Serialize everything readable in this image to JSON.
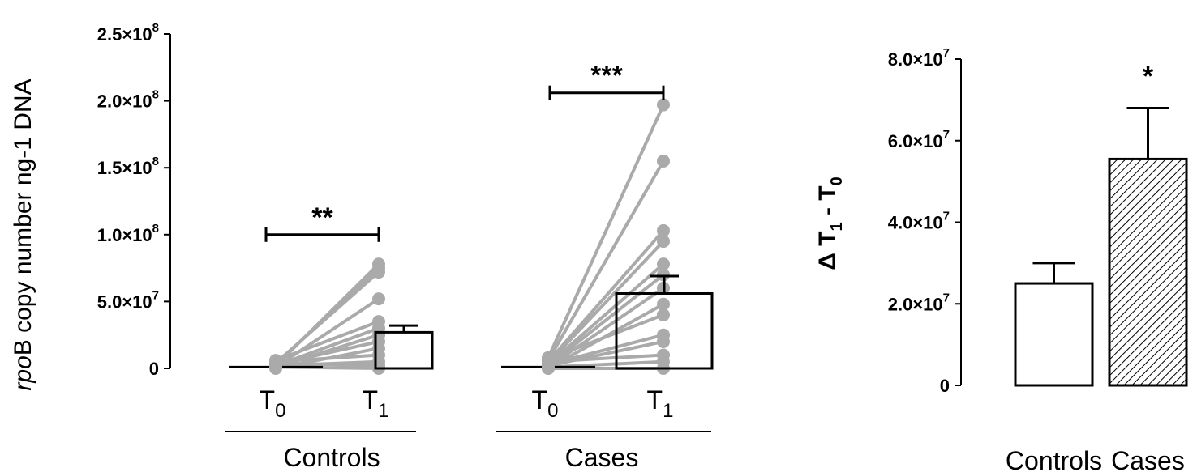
{
  "chart_data": [
    {
      "type": "bar",
      "ylabel": {
        "italic": "rpo",
        "rest": "B copy number ng-1 DNA"
      },
      "ylim": [
        0,
        250000000
      ],
      "yticks": [
        {
          "value": 0,
          "base": "0",
          "exp": ""
        },
        {
          "value": 50000000,
          "base": "5.0×10",
          "exp": "7"
        },
        {
          "value": 100000000,
          "base": "1.0×10",
          "exp": "8"
        },
        {
          "value": 150000000,
          "base": "1.5×10",
          "exp": "8"
        },
        {
          "value": 200000000,
          "base": "2.0×10",
          "exp": "8"
        },
        {
          "value": 250000000,
          "base": "2.5×10",
          "exp": "8"
        }
      ],
      "groups": [
        {
          "name": "Controls",
          "categories": [
            {
              "main": "T",
              "sub": "0"
            },
            {
              "main": "T",
              "sub": "1"
            }
          ],
          "means": [
            1000000,
            27000000
          ],
          "errors": [
            0,
            5000000
          ],
          "t0_values": [
            2000000,
            3000000,
            4000000,
            1000000,
            6000000,
            2000000,
            1000000,
            3000000,
            0,
            5000000,
            2000000,
            4000000,
            1000000
          ],
          "t1_values": [
            78000000,
            75000000,
            72000000,
            52000000,
            35000000,
            30000000,
            25000000,
            20000000,
            15000000,
            10000000,
            5000000,
            2000000,
            0
          ],
          "significance": "**",
          "sig_level": 100000000
        },
        {
          "name": "Cases",
          "categories": [
            {
              "main": "T",
              "sub": "0"
            },
            {
              "main": "T",
              "sub": "1"
            }
          ],
          "means": [
            1000000,
            56000000
          ],
          "errors": [
            0,
            13000000
          ],
          "t0_values": [
            8000000,
            6000000,
            5000000,
            4000000,
            3000000,
            2000000,
            1000000,
            0,
            7000000,
            3000000,
            2000000,
            5000000,
            1000000,
            0
          ],
          "t1_values": [
            197000000,
            155000000,
            103000000,
            95000000,
            78000000,
            70000000,
            60000000,
            48000000,
            40000000,
            25000000,
            20000000,
            10000000,
            5000000,
            0
          ],
          "significance": "***",
          "sig_level": 206000000
        }
      ]
    },
    {
      "type": "bar",
      "ylabel": {
        "prefix": "Δ T",
        "sub1": "1",
        "mid": " - T",
        "sub2": "0"
      },
      "ylim": [
        0,
        80000000
      ],
      "yticks": [
        {
          "value": 0,
          "base": "0",
          "exp": ""
        },
        {
          "value": 20000000,
          "base": "2.0×10",
          "exp": "7"
        },
        {
          "value": 40000000,
          "base": "4.0×10",
          "exp": "7"
        },
        {
          "value": 60000000,
          "base": "6.0×10",
          "exp": "7"
        },
        {
          "value": 80000000,
          "base": "8.0×10",
          "exp": "7"
        }
      ],
      "categories": [
        "Controls",
        "Cases"
      ],
      "values": [
        25000000,
        55500000
      ],
      "errors": [
        5000000,
        12500000
      ],
      "fills": [
        "white",
        "hatch"
      ],
      "significance": [
        "",
        "*"
      ]
    }
  ]
}
